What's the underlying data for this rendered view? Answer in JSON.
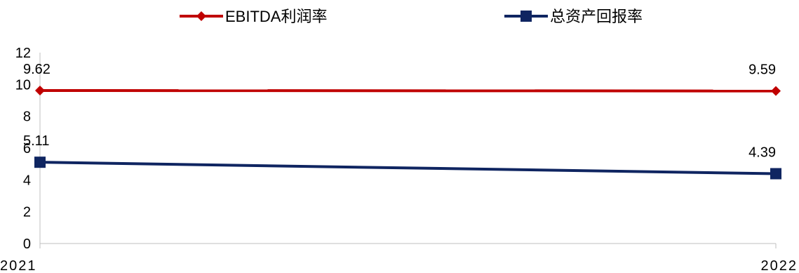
{
  "chart_data": {
    "type": "line",
    "title": "",
    "xlabel": "",
    "ylabel": "",
    "categories": [
      "2021",
      "2022"
    ],
    "ylim": [
      0,
      12
    ],
    "yticks": [
      0,
      2,
      4,
      6,
      8,
      10,
      12
    ],
    "grid": false,
    "legend_position": "top",
    "series": [
      {
        "name": "EBITDA利润率",
        "values": [
          9.62,
          9.59
        ],
        "labels": [
          "9.62",
          "9.59"
        ],
        "color": "#C00000",
        "marker": "diamond"
      },
      {
        "name": "总资产回报率",
        "values": [
          5.11,
          4.39
        ],
        "labels": [
          "5.11",
          "4.39"
        ],
        "color": "#0F2561",
        "marker": "square"
      }
    ]
  }
}
